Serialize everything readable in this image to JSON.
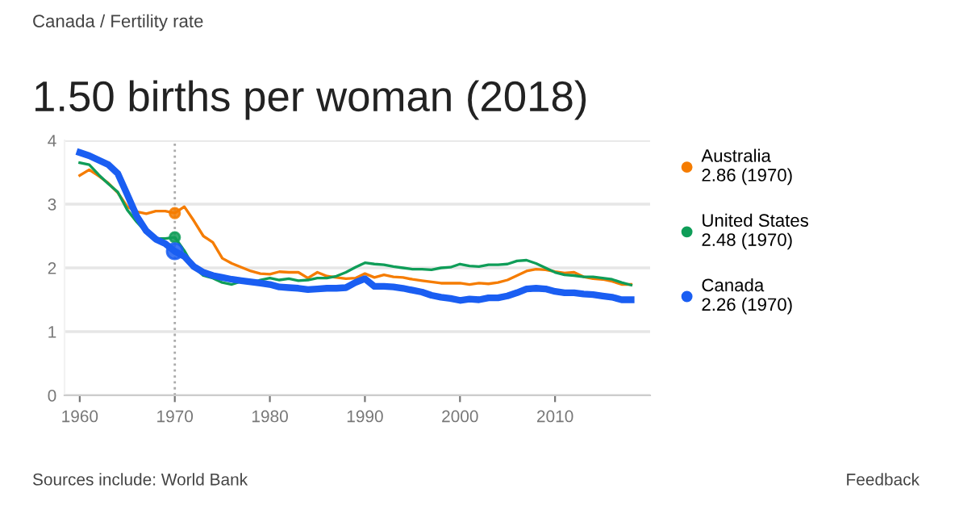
{
  "chart_data": {
    "type": "line",
    "title": "1.50 births per woman (2018)",
    "x": [
      1960,
      1961,
      1962,
      1963,
      1964,
      1965,
      1966,
      1967,
      1968,
      1969,
      1970,
      1971,
      1972,
      1973,
      1974,
      1975,
      1976,
      1977,
      1978,
      1979,
      1980,
      1981,
      1982,
      1983,
      1984,
      1985,
      1986,
      1987,
      1988,
      1989,
      1990,
      1991,
      1992,
      1993,
      1994,
      1995,
      1996,
      1997,
      1998,
      1999,
      2000,
      2001,
      2002,
      2003,
      2004,
      2005,
      2006,
      2007,
      2008,
      2009,
      2010,
      2011,
      2012,
      2013,
      2014,
      2015,
      2016,
      2017,
      2018
    ],
    "series": [
      {
        "name": "Australia",
        "color": "#f57c00",
        "values": [
          3.45,
          3.54,
          3.44,
          3.33,
          3.18,
          2.96,
          2.88,
          2.85,
          2.89,
          2.89,
          2.86,
          2.96,
          2.74,
          2.5,
          2.4,
          2.15,
          2.07,
          2.01,
          1.95,
          1.91,
          1.9,
          1.94,
          1.93,
          1.93,
          1.84,
          1.93,
          1.87,
          1.85,
          1.83,
          1.84,
          1.91,
          1.85,
          1.89,
          1.86,
          1.85,
          1.82,
          1.8,
          1.78,
          1.76,
          1.76,
          1.76,
          1.74,
          1.76,
          1.75,
          1.77,
          1.81,
          1.88,
          1.95,
          1.98,
          1.97,
          1.94,
          1.92,
          1.93,
          1.86,
          1.83,
          1.82,
          1.79,
          1.74,
          1.74
        ]
      },
      {
        "name": "United States",
        "color": "#0f9d58",
        "values": [
          3.65,
          3.62,
          3.46,
          3.32,
          3.19,
          2.91,
          2.72,
          2.56,
          2.46,
          2.46,
          2.48,
          2.27,
          2.01,
          1.88,
          1.84,
          1.77,
          1.74,
          1.79,
          1.76,
          1.81,
          1.84,
          1.81,
          1.83,
          1.8,
          1.81,
          1.84,
          1.84,
          1.87,
          1.93,
          2.01,
          2.08,
          2.06,
          2.05,
          2.02,
          2.0,
          1.98,
          1.98,
          1.97,
          2.0,
          2.01,
          2.06,
          2.03,
          2.02,
          2.05,
          2.05,
          2.06,
          2.11,
          2.12,
          2.07,
          2.0,
          1.93,
          1.89,
          1.88,
          1.86,
          1.86,
          1.84,
          1.82,
          1.77,
          1.73
        ]
      },
      {
        "name": "Canada",
        "color": "#1a5ef2",
        "values": [
          3.81,
          3.76,
          3.69,
          3.62,
          3.48,
          3.15,
          2.81,
          2.58,
          2.45,
          2.38,
          2.26,
          2.18,
          2.02,
          1.93,
          1.88,
          1.85,
          1.82,
          1.8,
          1.78,
          1.76,
          1.74,
          1.7,
          1.69,
          1.68,
          1.66,
          1.67,
          1.68,
          1.68,
          1.69,
          1.77,
          1.83,
          1.71,
          1.71,
          1.7,
          1.68,
          1.65,
          1.62,
          1.57,
          1.54,
          1.52,
          1.49,
          1.51,
          1.5,
          1.53,
          1.53,
          1.56,
          1.61,
          1.67,
          1.68,
          1.67,
          1.63,
          1.61,
          1.61,
          1.59,
          1.58,
          1.56,
          1.54,
          1.5,
          1.5
        ]
      }
    ],
    "xlim": [
      1958.4,
      2020
    ],
    "ylim": [
      0,
      4
    ],
    "xticks": [
      1960,
      1970,
      1980,
      1990,
      2000,
      2010
    ],
    "yticks": [
      0,
      1,
      2,
      3,
      4
    ],
    "grid": "y",
    "legend": "right",
    "marker": "none",
    "line_style": "solid",
    "ref_lines": [
      {
        "axis": "x",
        "value": 1970,
        "color": "#aaaaaa",
        "line_style": "dotted"
      }
    ],
    "annotations": [
      "Canada / Fertility rate",
      "2.86 (1970)",
      "2.48 (1970)",
      "2.26 (1970)",
      "Sources include: World Bank",
      "Feedback"
    ]
  }
}
